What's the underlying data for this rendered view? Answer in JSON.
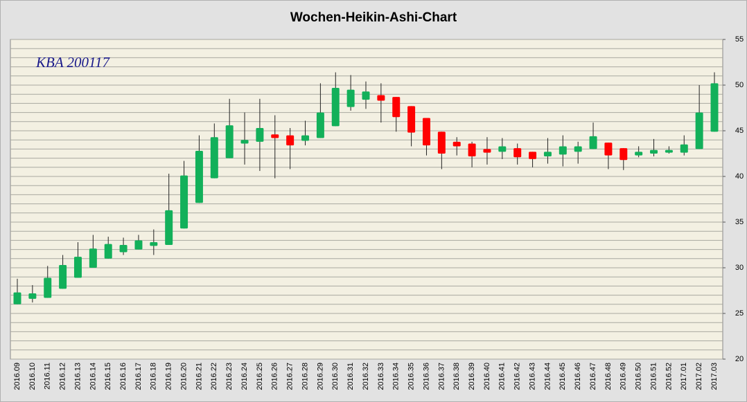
{
  "chart_data": {
    "type": "candlestick",
    "title": "Wochen-Heikin-Ashi-Chart",
    "annotation": "KBA 200117",
    "categories": [
      "2016.09",
      "2016.10",
      "2016.11",
      "2016.12",
      "2016.13",
      "2016.14",
      "2016.15",
      "2016.16",
      "2016.17",
      "2016.18",
      "2016.19",
      "2016.20",
      "2016.21",
      "2016.22",
      "2016.23",
      "2016.24",
      "2016.25",
      "2016.26",
      "2016.27",
      "2016.28",
      "2016.29",
      "2016.30",
      "2016.31",
      "2016.32",
      "2016.33",
      "2016.34",
      "2016.35",
      "2016.36",
      "2016.37",
      "2016.38",
      "2016.39",
      "2016.40",
      "2016.41",
      "2016.42",
      "2016.43",
      "2016.44",
      "2016.45",
      "2016.46",
      "2016.47",
      "2016.48",
      "2016.49",
      "2016.50",
      "2016.51",
      "2016.52",
      "2017.01",
      "2017.02",
      "2017.03"
    ],
    "open": [
      26.0,
      26.6,
      26.7,
      27.7,
      28.9,
      30.0,
      31.0,
      31.7,
      32.0,
      32.4,
      32.5,
      34.3,
      37.1,
      39.8,
      42.0,
      43.6,
      43.8,
      44.6,
      44.5,
      43.9,
      44.2,
      45.5,
      47.6,
      48.4,
      48.9,
      48.7,
      47.7,
      46.4,
      44.9,
      43.8,
      43.6,
      43.0,
      42.7,
      43.1,
      42.7,
      42.2,
      42.4,
      42.7,
      43.0,
      43.7,
      43.1,
      42.3,
      42.5,
      42.6,
      42.6,
      43.0,
      44.9
    ],
    "high": [
      28.8,
      28.1,
      30.2,
      31.4,
      32.8,
      33.6,
      33.4,
      33.3,
      33.6,
      34.2,
      40.3,
      41.7,
      44.5,
      45.8,
      48.5,
      47.0,
      48.5,
      46.7,
      45.3,
      46.1,
      50.2,
      51.4,
      51.1,
      50.4,
      50.2,
      48.7,
      47.7,
      46.4,
      44.9,
      44.3,
      43.8,
      44.3,
      44.2,
      43.6,
      42.7,
      44.2,
      44.5,
      43.8,
      45.9,
      43.7,
      43.1,
      43.3,
      44.1,
      43.3,
      44.5,
      50.0,
      51.4
    ],
    "low": [
      26.0,
      26.2,
      26.7,
      27.7,
      28.9,
      30.0,
      31.0,
      31.4,
      32.0,
      31.4,
      32.5,
      34.3,
      37.1,
      39.8,
      42.0,
      41.3,
      40.6,
      39.8,
      40.8,
      43.4,
      44.2,
      45.5,
      47.2,
      47.4,
      45.9,
      44.9,
      43.3,
      42.3,
      40.8,
      42.3,
      41.0,
      41.3,
      41.9,
      41.3,
      41.0,
      41.4,
      41.1,
      41.4,
      43.0,
      40.8,
      40.7,
      42.1,
      42.2,
      42.5,
      42.3,
      43.0,
      44.9
    ],
    "close": [
      27.3,
      27.2,
      28.9,
      30.3,
      31.2,
      32.1,
      32.6,
      32.5,
      33.0,
      32.8,
      36.3,
      40.1,
      42.8,
      44.3,
      45.6,
      44.0,
      45.3,
      44.2,
      43.4,
      44.5,
      47.0,
      49.7,
      49.5,
      49.3,
      48.3,
      46.5,
      44.8,
      43.4,
      42.5,
      43.3,
      42.2,
      42.6,
      43.3,
      42.1,
      41.9,
      42.7,
      43.3,
      43.3,
      44.4,
      42.3,
      41.8,
      42.7,
      42.9,
      42.9,
      43.5,
      47.0,
      50.2
    ],
    "up_color": "#12b05a",
    "down_color": "#ff0000",
    "ylim": [
      20,
      55
    ],
    "yticks": [
      20,
      25,
      30,
      35,
      40,
      45,
      50,
      55
    ],
    "yaxis_side": "right",
    "ygrid": [
      20,
      21,
      22,
      23,
      24,
      25,
      26,
      27,
      28,
      29,
      30,
      31,
      32,
      33,
      34,
      35,
      36,
      37,
      38,
      39,
      40,
      41,
      42,
      43,
      44,
      45,
      46,
      47,
      48,
      49,
      50,
      51,
      52,
      53,
      54,
      55
    ]
  }
}
